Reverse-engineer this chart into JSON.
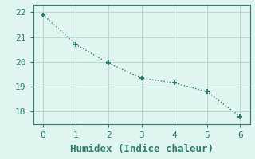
{
  "x": [
    0,
    1,
    2,
    3,
    4,
    5,
    6
  ],
  "y": [
    21.9,
    20.7,
    19.95,
    19.35,
    19.15,
    18.8,
    17.8
  ],
  "line_color": "#2e7d6e",
  "marker": "+",
  "marker_size": 5,
  "marker_linewidth": 1.5,
  "xlabel": "Humidex (Indice chaleur)",
  "xlim": [
    -0.3,
    6.3
  ],
  "ylim": [
    17.5,
    22.3
  ],
  "yticks": [
    18,
    19,
    20,
    21,
    22
  ],
  "xticks": [
    0,
    1,
    2,
    3,
    4,
    5,
    6
  ],
  "background_color": "#e0f5f0",
  "grid_color": "#b8d8d2",
  "spine_color": "#2e7d6e",
  "font_family": "monospace",
  "xlabel_fontsize": 9,
  "tick_fontsize": 8,
  "line_width": 1.0
}
